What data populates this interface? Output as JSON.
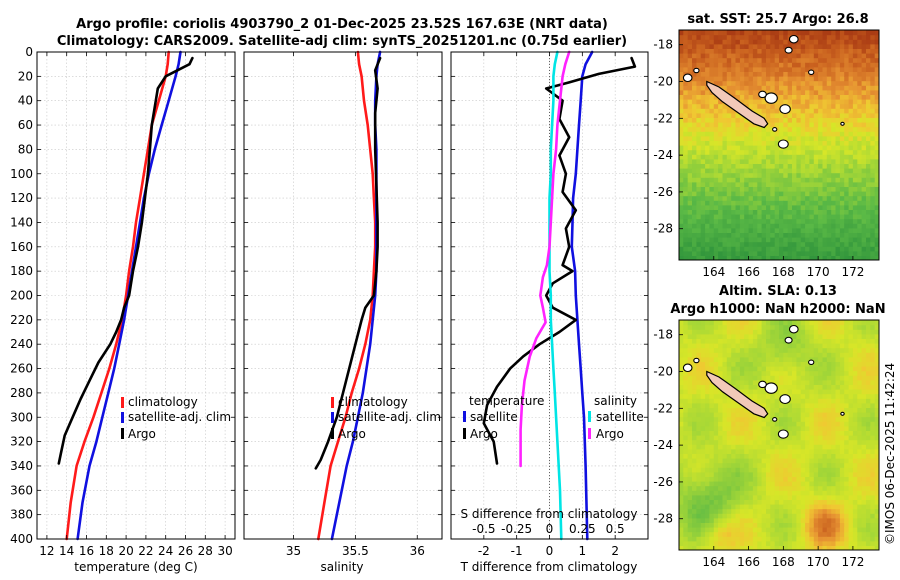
{
  "figure": {
    "title_line1": "Argo profile: coriolis 4903790_2 01-Dec-2025 23.52S 167.63E (NRT data)",
    "title_line2": "Climatology: CARS2009. Satellite-adj clim: synTS_20251201.nc (0.75d earlier)",
    "timestamp": "©IMOS 06-Dec-2025 11:42:24"
  },
  "colors": {
    "climatology": "#ff1a1a",
    "satellite": "#1010e0",
    "argo": "#000000",
    "sal_satellite": "#00e5e5",
    "sal_argo": "#ff22ff"
  },
  "chart_data": [
    {
      "type": "line",
      "title": "",
      "xlabel": "temperature (deg C)",
      "ylabel": "",
      "xlim": [
        11,
        31
      ],
      "ylim": [
        0,
        400
      ],
      "xticks": [
        12,
        14,
        16,
        18,
        20,
        22,
        24,
        26,
        28,
        30
      ],
      "yticks": [
        0,
        20,
        40,
        60,
        80,
        100,
        120,
        140,
        160,
        180,
        200,
        220,
        240,
        260,
        280,
        300,
        320,
        340,
        360,
        380,
        400
      ],
      "grid": true,
      "legend": [
        "climatology",
        "satellite-adj. clim",
        "Argo"
      ],
      "series": [
        {
          "name": "climatology",
          "color": "#ff1a1a",
          "x": [
            24.3,
            24.2,
            24.0,
            23.3,
            22.6,
            22.2,
            21.8,
            21.4,
            21.0,
            20.7,
            20.3,
            20.0,
            19.6,
            19.0,
            18.3,
            17.5,
            16.7,
            15.8,
            15.0,
            14.4,
            14.0
          ],
          "y": [
            0,
            10,
            20,
            40,
            60,
            80,
            100,
            120,
            140,
            160,
            180,
            200,
            220,
            240,
            260,
            280,
            300,
            320,
            340,
            370,
            400
          ]
        },
        {
          "name": "satellite-adj. clim",
          "color": "#1010e0",
          "x": [
            25.5,
            25.3,
            25.0,
            24.3,
            23.6,
            22.9,
            22.3,
            21.8,
            21.4,
            21.0,
            20.6,
            20.2,
            19.8,
            19.3,
            18.8,
            18.2,
            17.6,
            17.0,
            16.3,
            15.6,
            15.1
          ],
          "y": [
            0,
            10,
            20,
            40,
            60,
            80,
            100,
            120,
            140,
            160,
            180,
            200,
            220,
            240,
            260,
            280,
            300,
            320,
            340,
            370,
            400
          ]
        },
        {
          "name": "Argo",
          "color": "#000000",
          "x": [
            26.7,
            26.4,
            24.0,
            23.2,
            23.0,
            22.6,
            22.4,
            22.2,
            21.9,
            21.6,
            21.2,
            20.7,
            20.3,
            19.8,
            19.5,
            19.0,
            18.4,
            17.2,
            16.3,
            15.4,
            14.6,
            13.8,
            13.4,
            13.2
          ],
          "y": [
            5,
            10,
            20,
            30,
            40,
            60,
            80,
            100,
            120,
            140,
            160,
            180,
            200,
            210,
            220,
            230,
            240,
            255,
            270,
            285,
            300,
            315,
            330,
            338
          ]
        }
      ]
    },
    {
      "type": "line",
      "title": "",
      "xlabel": "salinity",
      "ylabel": "",
      "xlim": [
        34.6,
        36.2
      ],
      "ylim": [
        0,
        400
      ],
      "xticks": [
        35,
        35.5,
        36
      ],
      "xtick_labels": [
        "35",
        "35.5",
        "36"
      ],
      "grid": true,
      "legend": [
        "climatology",
        "satellite-adj. clim",
        "Argo"
      ],
      "series": [
        {
          "name": "climatology",
          "color": "#ff1a1a",
          "x": [
            35.52,
            35.53,
            35.55,
            35.57,
            35.6,
            35.62,
            35.64,
            35.65,
            35.66,
            35.66,
            35.65,
            35.64,
            35.62,
            35.58,
            35.53,
            35.47,
            35.42,
            35.36,
            35.3,
            35.25,
            35.2
          ],
          "y": [
            0,
            10,
            20,
            40,
            60,
            80,
            100,
            120,
            140,
            160,
            180,
            200,
            220,
            240,
            260,
            280,
            300,
            320,
            340,
            370,
            400
          ]
        },
        {
          "name": "satellite-adj. clim",
          "color": "#1010e0",
          "x": [
            35.7,
            35.68,
            35.67,
            35.66,
            35.66,
            35.67,
            35.67,
            35.67,
            35.67,
            35.67,
            35.67,
            35.66,
            35.64,
            35.62,
            35.59,
            35.56,
            35.52,
            35.48,
            35.43,
            35.37,
            35.31
          ],
          "y": [
            0,
            10,
            20,
            40,
            60,
            80,
            100,
            120,
            140,
            160,
            180,
            200,
            220,
            240,
            260,
            280,
            300,
            320,
            340,
            370,
            400
          ]
        },
        {
          "name": "Argo",
          "color": "#000000",
          "x": [
            35.7,
            35.66,
            35.68,
            35.66,
            35.66,
            35.67,
            35.68,
            35.68,
            35.67,
            35.66,
            35.65,
            35.58,
            35.55,
            35.5,
            35.45,
            35.4,
            35.35,
            35.28,
            35.22,
            35.18
          ],
          "y": [
            5,
            15,
            30,
            50,
            80,
            110,
            140,
            160,
            180,
            190,
            200,
            210,
            220,
            240,
            260,
            280,
            300,
            320,
            335,
            342
          ]
        }
      ]
    },
    {
      "type": "line",
      "title": "",
      "xlabel": "T difference from climatology",
      "xlabel_top": "S difference from climatology",
      "ylabel": "",
      "xlim": [
        -3,
        3
      ],
      "xlim_salinity": [
        -0.75,
        0.75
      ],
      "ylim": [
        0,
        400
      ],
      "xticks": [
        -2,
        -1,
        0,
        1,
        2
      ],
      "xtick_labels": [
        "-2",
        "-1",
        "0",
        "1",
        "2"
      ],
      "sal_ticks": [
        -0.5,
        -0.25,
        0,
        0.25,
        0.5
      ],
      "sal_tick_labels": [
        "-0.5",
        "-0.25",
        "0",
        "0.25",
        "0.5"
      ],
      "grid": true,
      "legend_temperature_title": "temperature",
      "legend_salinity_title": "salinity",
      "legend": [
        "satellite",
        "Argo"
      ],
      "series": [
        {
          "name": "temperature satellite",
          "color": "#1010e0",
          "x": [
            1.3,
            1.1,
            1.0,
            0.95,
            0.9,
            0.85,
            0.8,
            0.72,
            0.7,
            0.68,
            0.78,
            0.8,
            0.85,
            0.9,
            0.95,
            1.0,
            1.05,
            1.1,
            1.15
          ],
          "y": [
            0,
            10,
            20,
            40,
            60,
            80,
            100,
            120,
            140,
            160,
            180,
            200,
            220,
            240,
            260,
            280,
            300,
            340,
            400
          ]
        },
        {
          "name": "temperature Argo",
          "color": "#000000",
          "x": [
            2.5,
            2.6,
            1.5,
            0.6,
            -0.1,
            0.4,
            0.3,
            0.6,
            0.3,
            0.5,
            0.4,
            0.8,
            0.5,
            0.6,
            0.4,
            0.7,
            0.1,
            -0.1,
            0.1,
            0.8,
            0.3,
            -0.3,
            -0.8,
            -1.2,
            -1.6,
            -1.9,
            -2.0,
            -1.7,
            -1.6
          ],
          "y": [
            5,
            12,
            18,
            25,
            30,
            40,
            55,
            70,
            85,
            100,
            115,
            130,
            145,
            160,
            175,
            180,
            190,
            200,
            210,
            220,
            230,
            240,
            250,
            260,
            275,
            290,
            305,
            320,
            338
          ]
        },
        {
          "name": "salinity satellite",
          "color": "#00e5e5",
          "x": [
            0.06,
            0.04,
            0.03,
            0.03,
            0.02,
            0.01,
            0.01,
            0.0,
            0.0,
            0.0,
            0.0,
            0.01,
            0.01,
            0.02,
            0.03,
            0.04,
            0.05,
            0.06,
            0.08,
            0.09
          ],
          "y": [
            0,
            10,
            20,
            40,
            60,
            80,
            100,
            120,
            140,
            160,
            180,
            200,
            220,
            240,
            260,
            280,
            300,
            320,
            360,
            400
          ]
        },
        {
          "name": "salinity Argo",
          "color": "#ff22ff",
          "x": [
            0.15,
            0.12,
            0.1,
            0.08,
            0.06,
            0.05,
            0.03,
            0.02,
            0.01,
            0.0,
            -0.02,
            -0.05,
            -0.07,
            -0.05,
            -0.03,
            -0.1,
            -0.15,
            -0.19,
            -0.21,
            -0.22,
            -0.22,
            -0.22
          ],
          "y": [
            0,
            10,
            20,
            40,
            60,
            80,
            100,
            120,
            140,
            160,
            175,
            185,
            200,
            210,
            222,
            235,
            250,
            270,
            290,
            310,
            325,
            340
          ]
        }
      ]
    },
    {
      "type": "heatmap",
      "title": "sat. SST: 25.7 Argo: 26.8",
      "xlim": [
        162,
        173.5
      ],
      "ylim": [
        -29.7,
        -17.2
      ],
      "xticks": [
        164,
        166,
        168,
        170,
        172
      ],
      "yticks": [
        -18,
        -20,
        -22,
        -24,
        -26,
        -28
      ]
    },
    {
      "type": "heatmap",
      "title_line1": "Altim. SLA: 0.13",
      "title_line2": "Argo h1000: NaN h2000: NaN",
      "xlim": [
        162,
        173.5
      ],
      "ylim": [
        -29.7,
        -17.2
      ],
      "xticks": [
        164,
        166,
        168,
        170,
        172
      ],
      "yticks": [
        -18,
        -20,
        -22,
        -24,
        -26,
        -28
      ]
    }
  ]
}
